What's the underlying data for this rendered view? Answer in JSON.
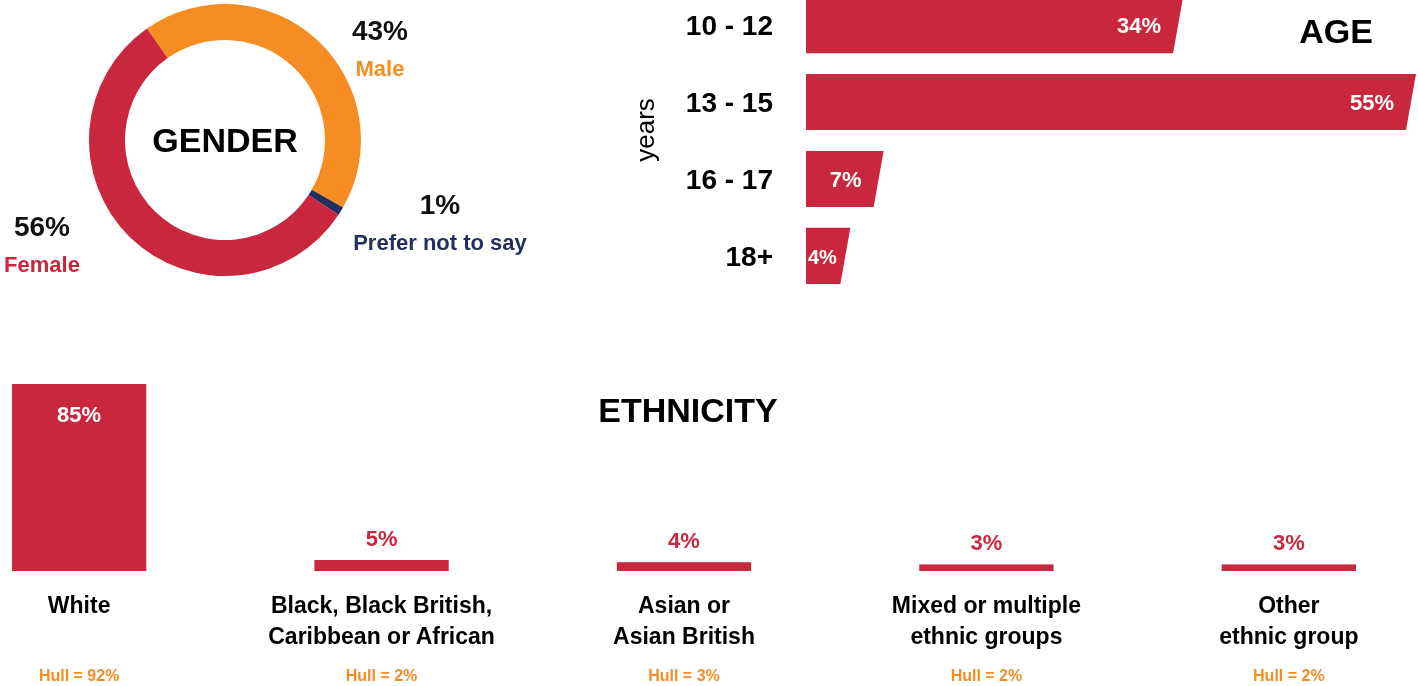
{
  "chart_data": [
    {
      "type": "donut",
      "title": "GENDER",
      "categories": [
        "Male",
        "Prefer not to say",
        "Female"
      ],
      "values": [
        43,
        1,
        56
      ],
      "colors": [
        "#f58d22",
        "#232f5c",
        "#c8273e"
      ],
      "value_labels": [
        "43%",
        "1%",
        "56%"
      ]
    },
    {
      "type": "bar",
      "orientation": "horizontal",
      "title": "AGE",
      "ylabel": "years",
      "categories": [
        "10 - 12",
        "13 - 15",
        "16 - 17",
        "18+"
      ],
      "values": [
        34,
        55,
        7,
        4
      ],
      "color": "#c8273e",
      "value_labels": [
        "34%",
        "55%",
        "7%",
        "4%"
      ]
    },
    {
      "type": "bar",
      "title": "ETHNICITY",
      "categories": [
        "White",
        "Black, Black British, Caribbean or African",
        "Asian or Asian British",
        "Mixed or multiple ethnic groups",
        "Other ethnic group"
      ],
      "values": [
        85,
        5,
        4,
        3,
        3
      ],
      "color": "#c8273e",
      "value_labels": [
        "85%",
        "5%",
        "4%",
        "3%",
        "3%"
      ],
      "annotations": [
        "Hull = 92%",
        "Hull = 2%",
        "Hull = 3%",
        "Hull = 2%",
        "Hull = 2%"
      ]
    }
  ]
}
